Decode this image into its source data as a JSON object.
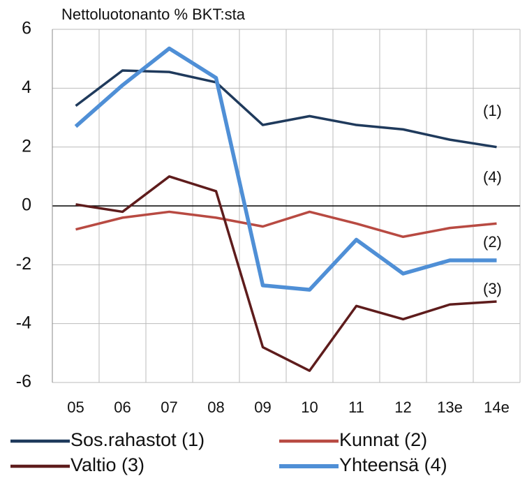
{
  "chart_data": {
    "type": "line",
    "title": "Nettoluotonanto  % BKT:sta",
    "categories": [
      "05",
      "06",
      "07",
      "08",
      "09",
      "10",
      "11",
      "12",
      "13e",
      "14e"
    ],
    "series": [
      {
        "name": "Sos.rahastot (1)",
        "color": "#1f3a5c",
        "values": [
          3.4,
          4.6,
          4.55,
          4.2,
          2.75,
          3.05,
          2.75,
          2.6,
          2.25,
          2.0
        ]
      },
      {
        "name": "Kunnat (2)",
        "color": "#b84a42",
        "values": [
          -0.8,
          -0.4,
          -0.2,
          -0.4,
          -0.7,
          -0.2,
          -0.6,
          -1.05,
          -0.75,
          -0.6
        ]
      },
      {
        "name": "Valtio (3)",
        "color": "#5e1c1c",
        "values": [
          0.05,
          -0.2,
          1.0,
          0.5,
          -4.8,
          -5.6,
          -3.4,
          -3.85,
          -3.35,
          -3.25
        ]
      },
      {
        "name": "Yhteensä (4)",
        "color": "#4f8fd6",
        "values": [
          2.7,
          4.1,
          5.35,
          4.35,
          -2.7,
          -2.85,
          -1.15,
          -2.3,
          -1.85,
          -1.85
        ]
      }
    ],
    "annotations": [
      "(1)",
      "(4)",
      "(2)",
      "(3)"
    ],
    "ylim": [
      -6,
      6
    ],
    "yticks": [
      -6,
      -4,
      -2,
      0,
      2,
      4,
      6
    ],
    "grid": true
  }
}
